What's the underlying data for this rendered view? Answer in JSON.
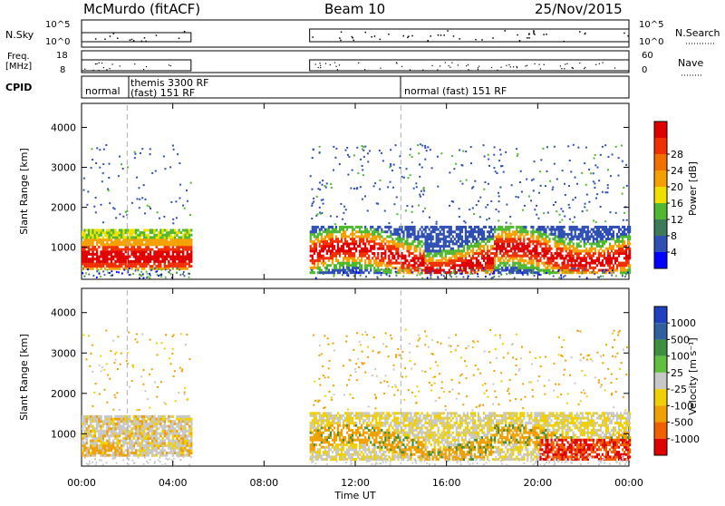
{
  "header": {
    "station": "McMurdo (fitACF)",
    "beam": "Beam 10",
    "date": "25/Nov/2015"
  },
  "strips": {
    "nsky_label": "N.Sky",
    "nsky_ticks": [
      "10^5",
      "10^0"
    ],
    "nsky_right_ticks": [
      "10^5",
      "10^0"
    ],
    "nsearch_label": "N.Search",
    "freq_label_1": "Freq.",
    "freq_label_2": "[MHz]",
    "freq_ticks": [
      "18",
      "8"
    ],
    "nave_ticks": [
      "60",
      "0"
    ],
    "nave_label": "Nave",
    "cpid_label": "CPID",
    "cpid_entries": [
      {
        "line1": "normal",
        "line2": ""
      },
      {
        "line1": "themis 3300 RF",
        "line2": "(fast) 151 RF"
      },
      {
        "line1": "normal (fast) 151 RF",
        "line2": ""
      }
    ]
  },
  "chart_data": [
    {
      "type": "heatmap",
      "quantity": "power",
      "ylabel": "Slant Range [km]",
      "yticks": [
        1000,
        2000,
        3000,
        4000
      ],
      "ylim": [
        200,
        4600
      ],
      "x_ticks": [
        "00:00",
        "04:00",
        "08:00",
        "12:00",
        "16:00",
        "20:00",
        "00:00"
      ],
      "colorbar_label": "Power [dB]",
      "colorbar_ticks": [
        "4",
        "8",
        "12",
        "16",
        "20",
        "24",
        "28"
      ],
      "colorbar_colors": [
        "#0000ff",
        "#2e4fb4",
        "#3d7a5a",
        "#4fb830",
        "#f0e000",
        "#f5a000",
        "#f07000",
        "#f03000",
        "#e00000"
      ]
    },
    {
      "type": "heatmap",
      "quantity": "velocity",
      "ylabel": "Slant Range [km]",
      "yticks": [
        1000,
        2000,
        3000,
        4000
      ],
      "ylim": [
        200,
        4600
      ],
      "x_ticks": [
        "00:00",
        "04:00",
        "08:00",
        "12:00",
        "16:00",
        "20:00",
        "00:00"
      ],
      "xlabel": "Time UT",
      "colorbar_label": "Velocity [m s⁻¹]",
      "colorbar_ticks": [
        "1000",
        "500",
        "100",
        "25",
        "-25",
        "-100",
        "-500",
        "-1000"
      ],
      "colorbar_colors": [
        "#2040c0",
        "#3060a0",
        "#3c9040",
        "#60c040",
        "#c8c8c8",
        "#f0d000",
        "#f0a000",
        "#f06000",
        "#e00000"
      ]
    }
  ],
  "colors": {
    "gap_dash": "#b0b0b0",
    "ground_scatter": "#c0c0c0"
  }
}
